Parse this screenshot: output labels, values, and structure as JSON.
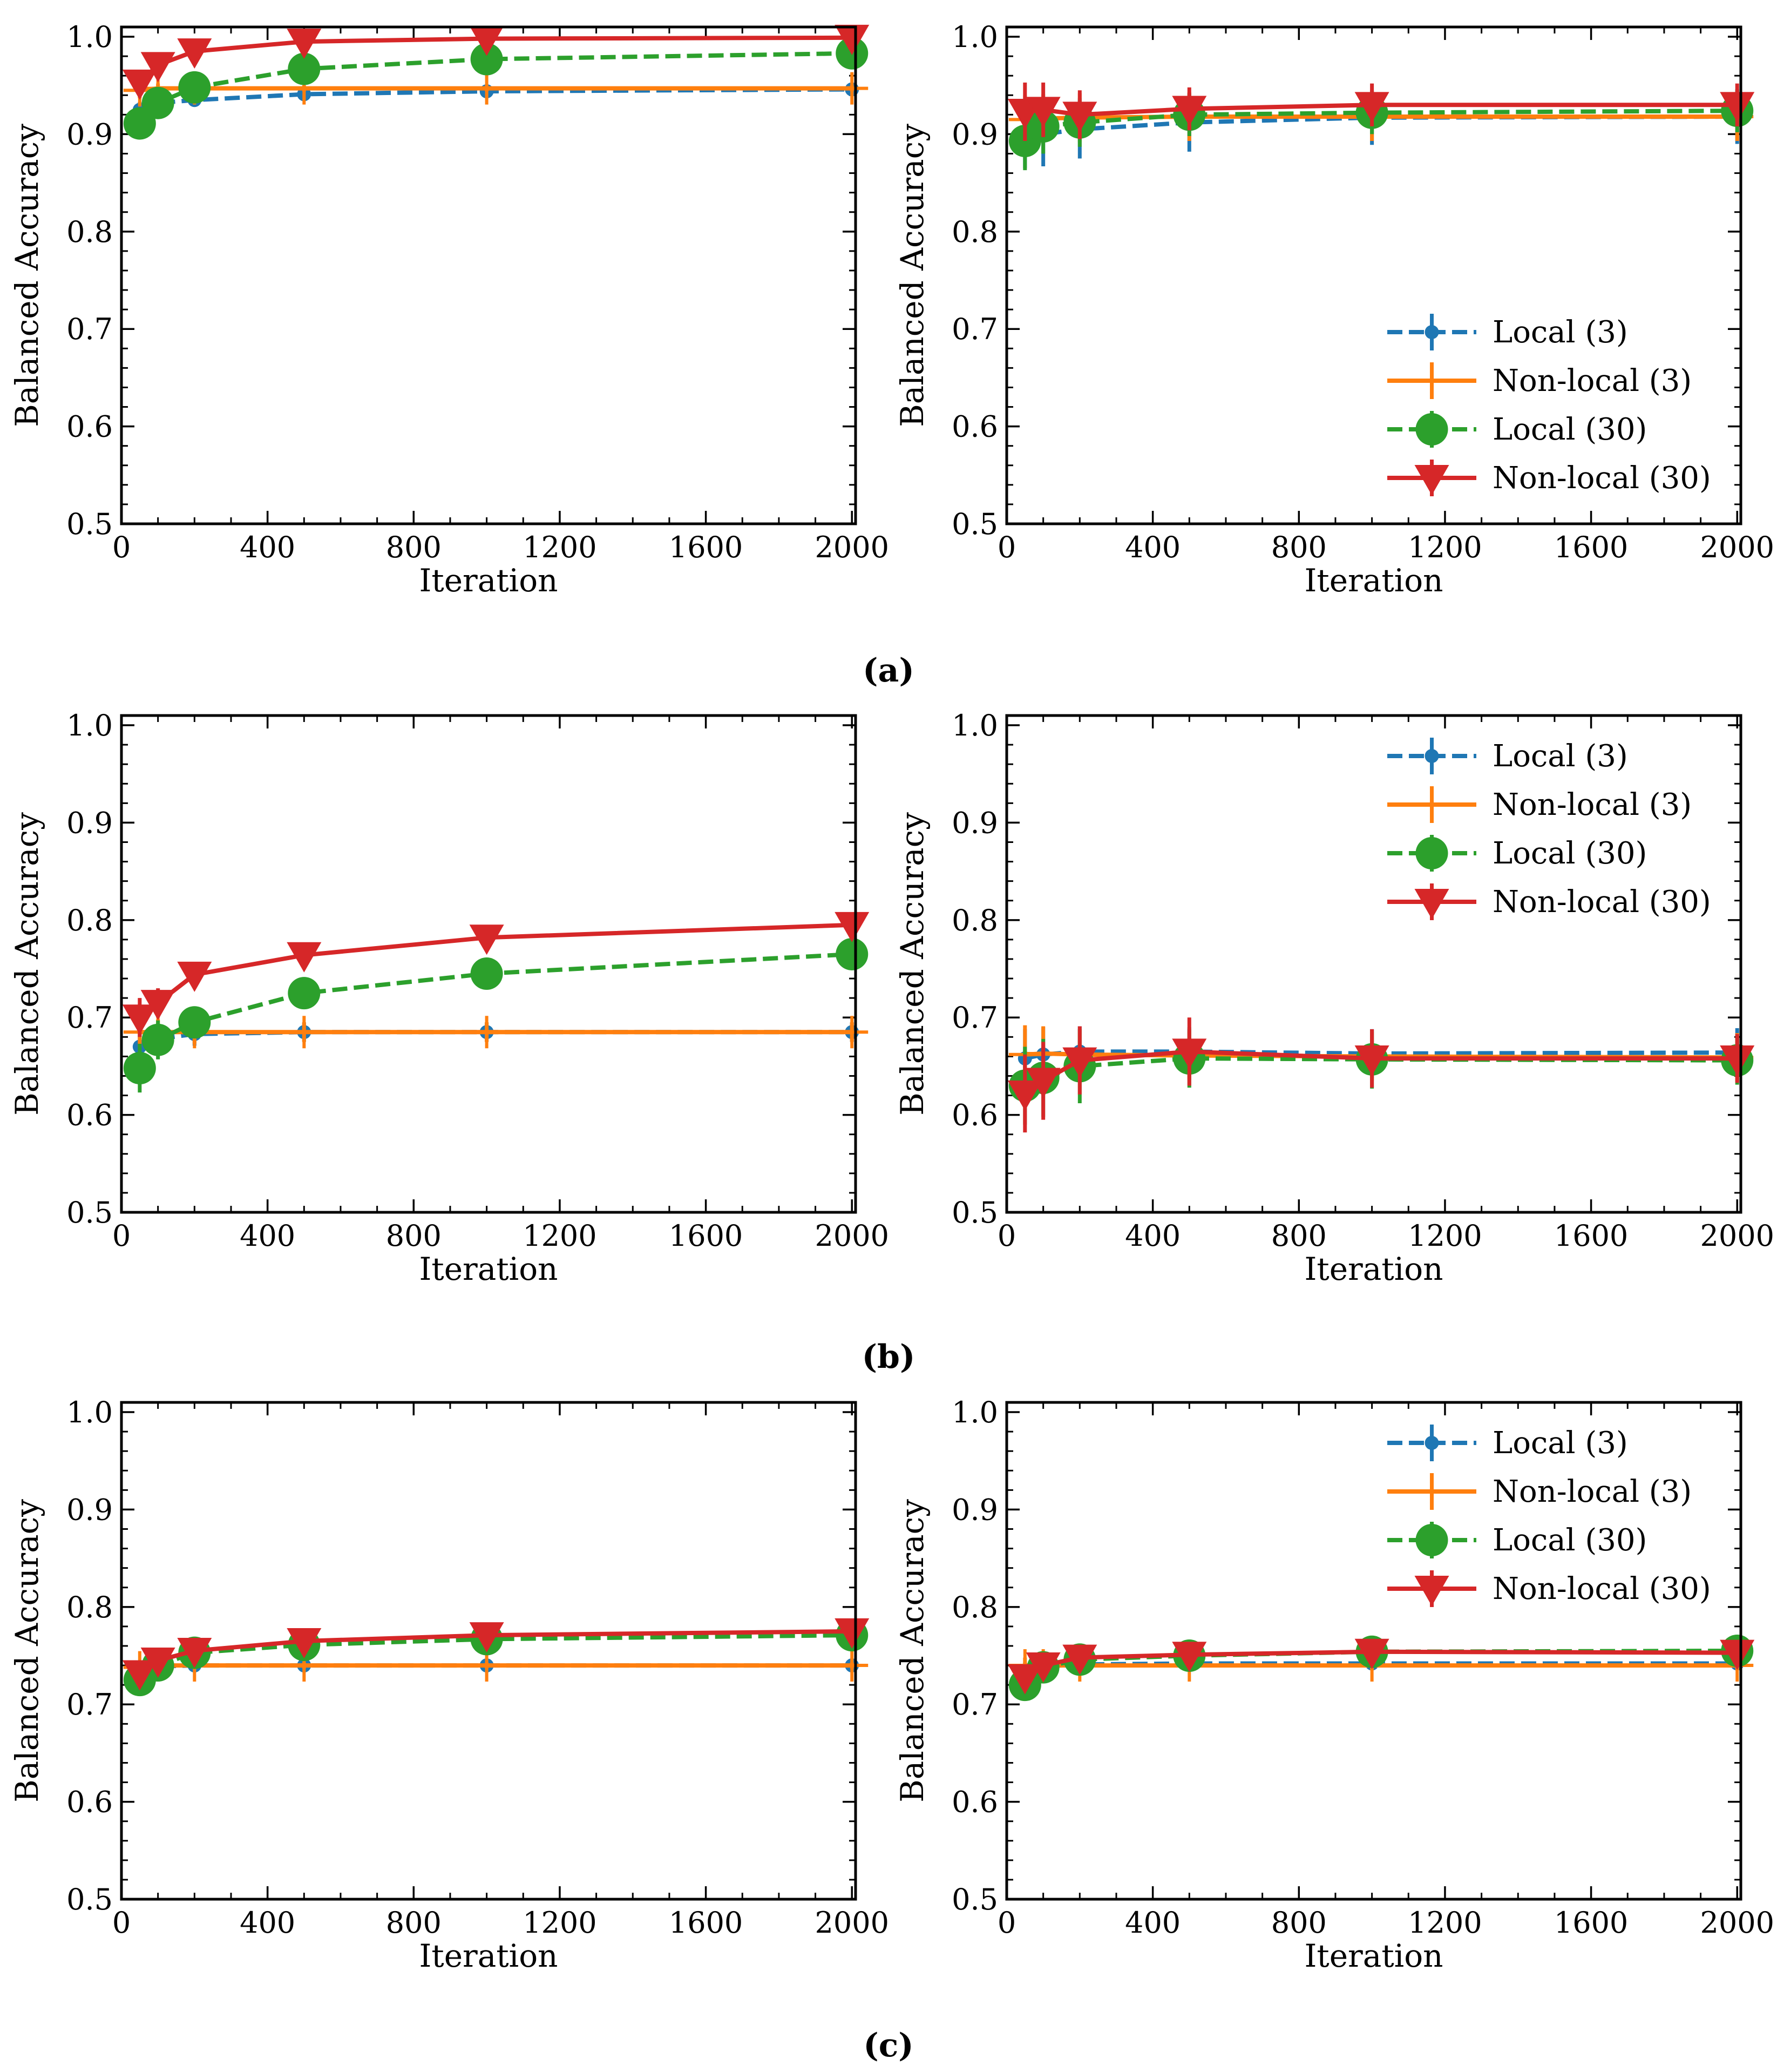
{
  "captions": [
    "(a)",
    "(b)",
    "(c)"
  ],
  "series_styles": [
    {
      "key": "local3",
      "name": "Local (3)",
      "color": "#1f77b4",
      "marker": "dot",
      "dashed": true
    },
    {
      "key": "nonlocal3",
      "name": "Non-local (3)",
      "color": "#ff7f0e",
      "marker": "plus",
      "dashed": false
    },
    {
      "key": "local30",
      "name": "Local (30)",
      "color": "#2ca02c",
      "marker": "circle",
      "dashed": true
    },
    {
      "key": "nonlocal30",
      "name": "Non-local (30)",
      "color": "#d62728",
      "marker": "triangle-down",
      "dashed": false
    }
  ],
  "chart_data": [
    {
      "id": "a-left",
      "type": "line",
      "panel": "(a)",
      "xlabel": "Iteration",
      "ylabel": "Balanced Accuracy",
      "xlim": [
        0,
        2010
      ],
      "ylim": [
        0.5,
        1.01
      ],
      "xticks": [
        0,
        400,
        800,
        1200,
        1600,
        2000
      ],
      "yticks": [
        0.5,
        0.6,
        0.7,
        0.8,
        0.9,
        1.0
      ],
      "legend": null,
      "x": [
        50,
        100,
        200,
        500,
        1000,
        2000
      ],
      "series": [
        {
          "name": "Local (3)",
          "values": [
            0.925,
            0.932,
            0.935,
            0.941,
            0.944,
            0.946
          ],
          "errors": [
            0.008,
            0.007,
            0.006,
            0.005,
            0.005,
            0.004
          ]
        },
        {
          "name": "Non-local (3)",
          "values": [
            0.945,
            0.947,
            0.947,
            0.947,
            0.947,
            0.947
          ],
          "errors": [
            0.008,
            0.005,
            0.004,
            0.003,
            0.003,
            0.003
          ]
        },
        {
          "name": "Local (30)",
          "values": [
            0.911,
            0.932,
            0.948,
            0.967,
            0.977,
            0.983
          ],
          "errors": [
            0.015,
            0.01,
            0.008,
            0.005,
            0.004,
            0.003
          ]
        },
        {
          "name": "Non-local (30)",
          "values": [
            0.953,
            0.971,
            0.985,
            0.995,
            0.998,
            0.999
          ],
          "errors": [
            0.01,
            0.007,
            0.004,
            0.002,
            0.001,
            0.001
          ]
        }
      ]
    },
    {
      "id": "a-right",
      "type": "line",
      "panel": "(a)",
      "xlabel": "Iteration",
      "ylabel": "Balanced Accuracy",
      "xlim": [
        0,
        2010
      ],
      "ylim": [
        0.5,
        1.01
      ],
      "xticks": [
        0,
        400,
        800,
        1200,
        1600,
        2000
      ],
      "yticks": [
        0.5,
        0.6,
        0.7,
        0.8,
        0.9,
        1.0
      ],
      "legend": "lower-right",
      "x": [
        50,
        100,
        200,
        500,
        1000,
        2000
      ],
      "series": [
        {
          "name": "Local (3)",
          "values": [
            0.9,
            0.9,
            0.905,
            0.912,
            0.917,
            0.918
          ],
          "errors": [
            0.035,
            0.033,
            0.03,
            0.03,
            0.028,
            0.028
          ]
        },
        {
          "name": "Non-local (3)",
          "values": [
            0.915,
            0.916,
            0.917,
            0.918,
            0.918,
            0.918
          ],
          "errors": [
            0.025,
            0.025,
            0.025,
            0.025,
            0.025,
            0.025
          ]
        },
        {
          "name": "Local (30)",
          "values": [
            0.893,
            0.908,
            0.912,
            0.92,
            0.922,
            0.924
          ],
          "errors": [
            0.03,
            0.028,
            0.025,
            0.022,
            0.022,
            0.022
          ]
        },
        {
          "name": "Non-local (30)",
          "values": [
            0.923,
            0.925,
            0.92,
            0.926,
            0.93,
            0.93
          ],
          "errors": [
            0.03,
            0.028,
            0.025,
            0.022,
            0.022,
            0.022
          ]
        }
      ]
    },
    {
      "id": "b-left",
      "type": "line",
      "panel": "(b)",
      "xlabel": "Iteration",
      "ylabel": "Balanced Accuracy",
      "xlim": [
        0,
        2010
      ],
      "ylim": [
        0.5,
        1.01
      ],
      "xticks": [
        0,
        400,
        800,
        1200,
        1600,
        2000
      ],
      "yticks": [
        0.5,
        0.6,
        0.7,
        0.8,
        0.9,
        1.0
      ],
      "legend": null,
      "x": [
        50,
        100,
        200,
        500,
        1000,
        2000
      ],
      "series": [
        {
          "name": "Local (3)",
          "values": [
            0.67,
            0.678,
            0.683,
            0.685,
            0.685,
            0.685
          ],
          "errors": [
            0.015,
            0.013,
            0.012,
            0.01,
            0.01,
            0.01
          ]
        },
        {
          "name": "Non-local (3)",
          "values": [
            0.685,
            0.685,
            0.685,
            0.685,
            0.685,
            0.685
          ],
          "errors": [
            0.015,
            0.013,
            0.012,
            0.01,
            0.01,
            0.01
          ]
        },
        {
          "name": "Local (30)",
          "values": [
            0.648,
            0.677,
            0.695,
            0.725,
            0.745,
            0.765
          ],
          "errors": [
            0.025,
            0.02,
            0.015,
            0.008,
            0.006,
            0.005
          ]
        },
        {
          "name": "Non-local (30)",
          "values": [
            0.7,
            0.715,
            0.744,
            0.764,
            0.782,
            0.795
          ],
          "errors": [
            0.02,
            0.015,
            0.012,
            0.008,
            0.006,
            0.004
          ]
        }
      ]
    },
    {
      "id": "b-right",
      "type": "line",
      "panel": "(b)",
      "xlabel": "Iteration",
      "ylabel": "Balanced Accuracy",
      "xlim": [
        0,
        2010
      ],
      "ylim": [
        0.5,
        1.01
      ],
      "xticks": [
        0,
        400,
        800,
        1200,
        1600,
        2000
      ],
      "yticks": [
        0.5,
        0.6,
        0.7,
        0.8,
        0.9,
        1.0
      ],
      "legend": "upper-right",
      "x": [
        50,
        100,
        200,
        500,
        1000,
        2000
      ],
      "series": [
        {
          "name": "Local (3)",
          "values": [
            0.658,
            0.662,
            0.665,
            0.665,
            0.663,
            0.664
          ],
          "errors": [
            0.03,
            0.028,
            0.026,
            0.025,
            0.025,
            0.025
          ]
        },
        {
          "name": "Non-local (3)",
          "values": [
            0.662,
            0.663,
            0.662,
            0.661,
            0.66,
            0.659
          ],
          "errors": [
            0.03,
            0.028,
            0.026,
            0.025,
            0.025,
            0.025
          ]
        },
        {
          "name": "Local (30)",
          "values": [
            0.63,
            0.638,
            0.65,
            0.658,
            0.657,
            0.656
          ],
          "errors": [
            0.04,
            0.04,
            0.038,
            0.03,
            0.03,
            0.025
          ]
        },
        {
          "name": "Non-local (30)",
          "values": [
            0.622,
            0.635,
            0.656,
            0.665,
            0.658,
            0.658
          ],
          "errors": [
            0.04,
            0.04,
            0.035,
            0.035,
            0.03,
            0.025
          ]
        }
      ]
    },
    {
      "id": "c-left",
      "type": "line",
      "panel": "(c)",
      "xlabel": "Iteration",
      "ylabel": "Balanced Accuracy",
      "xlim": [
        0,
        2010
      ],
      "ylim": [
        0.5,
        1.01
      ],
      "xticks": [
        0,
        400,
        800,
        1200,
        1600,
        2000
      ],
      "yticks": [
        0.5,
        0.6,
        0.7,
        0.8,
        0.9,
        1.0
      ],
      "legend": null,
      "x": [
        50,
        100,
        200,
        500,
        1000,
        2000
      ],
      "series": [
        {
          "name": "Local (3)",
          "values": [
            0.735,
            0.739,
            0.74,
            0.74,
            0.74,
            0.74
          ],
          "errors": [
            0.006,
            0.005,
            0.004,
            0.003,
            0.003,
            0.003
          ]
        },
        {
          "name": "Non-local (3)",
          "values": [
            0.738,
            0.74,
            0.74,
            0.74,
            0.74,
            0.74
          ],
          "errors": [
            0.006,
            0.005,
            0.004,
            0.003,
            0.003,
            0.003
          ]
        },
        {
          "name": "Local (30)",
          "values": [
            0.725,
            0.74,
            0.753,
            0.761,
            0.767,
            0.771
          ],
          "errors": [
            0.01,
            0.008,
            0.006,
            0.004,
            0.004,
            0.003
          ]
        },
        {
          "name": "Non-local (30)",
          "values": [
            0.732,
            0.745,
            0.755,
            0.765,
            0.771,
            0.775
          ],
          "errors": [
            0.008,
            0.006,
            0.005,
            0.004,
            0.003,
            0.003
          ]
        }
      ]
    },
    {
      "id": "c-right",
      "type": "line",
      "panel": "(c)",
      "xlabel": "Iteration",
      "ylabel": "Balanced Accuracy",
      "xlim": [
        0,
        2010
      ],
      "ylim": [
        0.5,
        1.01
      ],
      "xticks": [
        0,
        400,
        800,
        1200,
        1600,
        2000
      ],
      "yticks": [
        0.5,
        0.6,
        0.7,
        0.8,
        0.9,
        1.0
      ],
      "legend": "upper-right",
      "x": [
        50,
        100,
        200,
        500,
        1000,
        2000
      ],
      "series": [
        {
          "name": "Local (3)",
          "values": [
            0.735,
            0.739,
            0.741,
            0.742,
            0.742,
            0.742
          ],
          "errors": [
            0.008,
            0.007,
            0.006,
            0.005,
            0.005,
            0.005
          ]
        },
        {
          "name": "Non-local (3)",
          "values": [
            0.74,
            0.74,
            0.74,
            0.74,
            0.74,
            0.74
          ],
          "errors": [
            0.008,
            0.007,
            0.006,
            0.005,
            0.005,
            0.005
          ]
        },
        {
          "name": "Local (30)",
          "values": [
            0.72,
            0.738,
            0.746,
            0.75,
            0.754,
            0.755
          ],
          "errors": [
            0.012,
            0.01,
            0.008,
            0.006,
            0.005,
            0.005
          ]
        },
        {
          "name": "Non-local (30)",
          "values": [
            0.728,
            0.74,
            0.748,
            0.751,
            0.754,
            0.753
          ],
          "errors": [
            0.012,
            0.01,
            0.008,
            0.006,
            0.005,
            0.005
          ]
        }
      ]
    }
  ]
}
